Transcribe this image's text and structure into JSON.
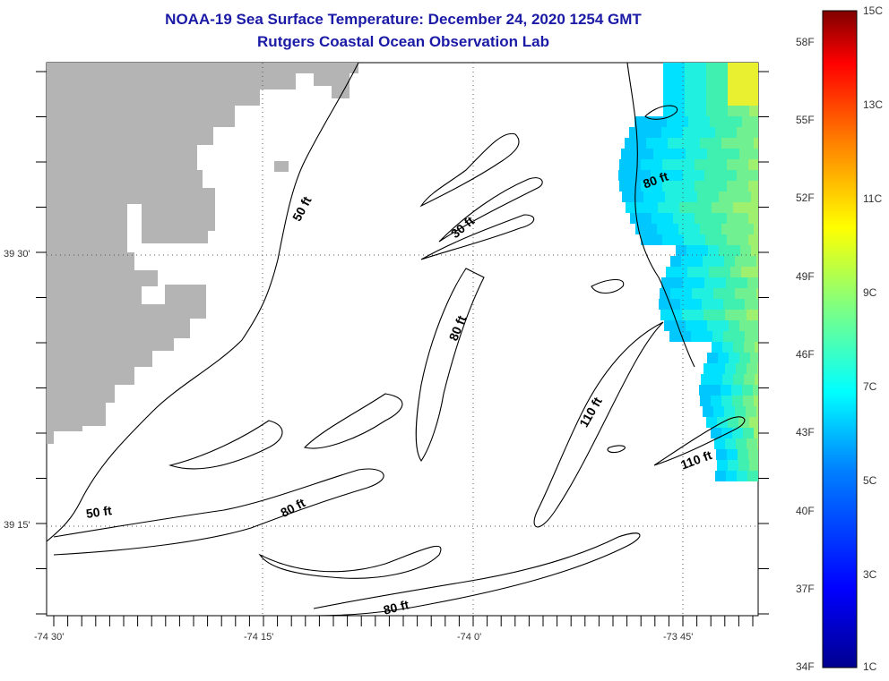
{
  "title": {
    "line1": "NOAA-19 Sea Surface Temperature:  December 24, 2020 1254 GMT",
    "line2": "Rutgers Coastal Ocean Observation Lab"
  },
  "axes": {
    "x_ticks": [
      "-74 30'",
      "-74 15'",
      "-74 0'",
      "-73 45'"
    ],
    "y_ticks": [
      "39 30'",
      "39 15'"
    ]
  },
  "contours": {
    "labels": [
      "50 ft",
      "30 ft",
      "80 ft",
      "80 ft",
      "110 ft",
      "80 ft",
      "110 ft",
      "50 ft",
      "80 ft"
    ]
  },
  "colorbar": {
    "fahrenheit": [
      "58F",
      "55F",
      "52F",
      "49F",
      "46F",
      "43F",
      "40F",
      "37F",
      "34F"
    ],
    "celsius": [
      "15C",
      "13C",
      "11C",
      "9C",
      "7C",
      "5C",
      "3C",
      "1C"
    ],
    "range_c": [
      1,
      15
    ],
    "colors": [
      "#00008f",
      "#0000ff",
      "#0080ff",
      "#00ffff",
      "#80ff80",
      "#ffff00",
      "#ff8000",
      "#ff0000",
      "#800000"
    ]
  },
  "colors": {
    "title": "#1a1aa6",
    "land": "#b4b4b4",
    "contour": "#000000"
  }
}
